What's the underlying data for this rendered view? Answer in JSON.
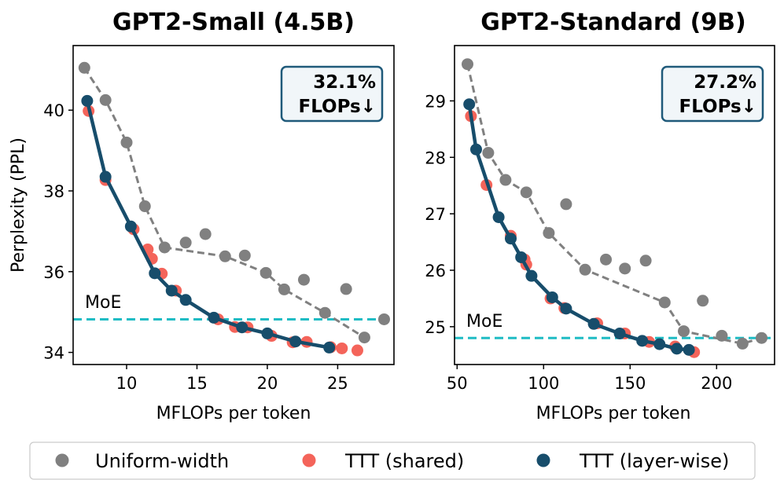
{
  "colors": {
    "uniform": "#808080",
    "shared": "#f4645a",
    "layerwise": "#174d6b",
    "moe": "#1fbcc4",
    "badge_border": "#1f5a7a",
    "badge_fill": "#f1f6f9"
  },
  "legend": {
    "items": [
      {
        "key": "uniform",
        "label": "Uniform-width"
      },
      {
        "key": "shared",
        "label": "TTT (shared)"
      },
      {
        "key": "layerwise",
        "label": "TTT (layer-wise)"
      }
    ]
  },
  "chart_data": [
    {
      "type": "line",
      "title": "GPT2-Small (4.5B)",
      "xlabel": "MFLOPs per token",
      "ylabel": "Perplexity (PPL)",
      "xlim": [
        6.2,
        29.0
      ],
      "ylim": [
        33.7,
        41.6
      ],
      "xticks": [
        10,
        15,
        20,
        25
      ],
      "yticks": [
        34,
        36,
        38,
        40
      ],
      "badge": {
        "line1": "32.1%",
        "line2": "FLOPs↓"
      },
      "moe": {
        "label": "MoE",
        "value": 34.82
      },
      "series": {
        "uniform": {
          "name": "Uniform-width",
          "points": [
            [
              7.0,
              41.05
            ],
            [
              8.5,
              40.25
            ],
            [
              10.0,
              39.2
            ],
            [
              11.3,
              37.62
            ],
            [
              12.7,
              36.6
            ],
            [
              14.2,
              36.72
            ],
            [
              15.6,
              36.93
            ],
            [
              17.0,
              36.38
            ],
            [
              18.4,
              36.4
            ],
            [
              19.9,
              35.97
            ],
            [
              21.2,
              35.56
            ],
            [
              22.6,
              35.8
            ],
            [
              24.1,
              34.98
            ],
            [
              25.6,
              35.57
            ],
            [
              26.9,
              34.37
            ],
            [
              28.3,
              34.82
            ]
          ],
          "line_indices": [
            0,
            1,
            2,
            3,
            4,
            7,
            9,
            10,
            12,
            14
          ]
        },
        "shared": {
          "name": "TTT (shared)",
          "points": [
            [
              7.3,
              39.98
            ],
            [
              8.5,
              38.27
            ],
            [
              10.5,
              37.05
            ],
            [
              11.5,
              36.55
            ],
            [
              11.8,
              36.32
            ],
            [
              12.5,
              35.95
            ],
            [
              13.5,
              35.53
            ],
            [
              16.5,
              34.82
            ],
            [
              17.7,
              34.63
            ],
            [
              18.6,
              34.62
            ],
            [
              20.3,
              34.41
            ],
            [
              21.8,
              34.25
            ],
            [
              22.8,
              34.26
            ],
            [
              24.5,
              34.13
            ],
            [
              25.3,
              34.1
            ],
            [
              26.4,
              34.05
            ]
          ]
        },
        "layerwise": {
          "name": "TTT (layer-wise)",
          "points": [
            [
              7.2,
              40.23
            ],
            [
              8.5,
              38.35
            ],
            [
              10.3,
              37.12
            ],
            [
              12.0,
              35.96
            ],
            [
              13.2,
              35.53
            ],
            [
              14.2,
              35.3
            ],
            [
              16.2,
              34.86
            ],
            [
              18.2,
              34.62
            ],
            [
              20.0,
              34.47
            ],
            [
              22.0,
              34.27
            ],
            [
              24.4,
              34.12
            ]
          ]
        }
      }
    },
    {
      "type": "line",
      "title": "GPT2-Standard (9B)",
      "xlabel": "MFLOPs per token",
      "ylabel": "",
      "xlim": [
        48.5,
        233.5
      ],
      "ylim": [
        24.33,
        29.98
      ],
      "xticks": [
        50,
        100,
        150,
        200
      ],
      "yticks": [
        25,
        26,
        27,
        28,
        29
      ],
      "badge": {
        "line1": "27.2%",
        "line2": "FLOPs↓"
      },
      "moe": {
        "label": "MoE",
        "value": 24.8
      },
      "series": {
        "uniform": {
          "name": "Uniform-width",
          "points": [
            [
              56,
              29.65
            ],
            [
              68,
              28.08
            ],
            [
              78,
              27.6
            ],
            [
              90,
              27.38
            ],
            [
              113,
              27.17
            ],
            [
              103,
              26.66
            ],
            [
              136,
              26.19
            ],
            [
              124,
              26.01
            ],
            [
              147,
              26.03
            ],
            [
              159,
              26.17
            ],
            [
              170,
              25.43
            ],
            [
              192,
              25.46
            ],
            [
              181,
              24.92
            ],
            [
              203,
              24.84
            ],
            [
              215,
              24.7
            ],
            [
              226,
              24.8
            ]
          ],
          "line_indices": [
            0,
            1,
            2,
            3,
            5,
            7,
            10,
            12,
            14,
            15
          ]
        },
        "shared": {
          "name": "TTT (shared)",
          "points": [
            [
              58,
              28.73
            ],
            [
              67,
              27.51
            ],
            [
              81,
              26.61
            ],
            [
              89,
              26.19
            ],
            [
              90,
              26.1
            ],
            [
              104,
              25.5
            ],
            [
              112,
              25.33
            ],
            [
              131,
              25.06
            ],
            [
              147,
              24.88
            ],
            [
              161,
              24.73
            ],
            [
              176,
              24.65
            ],
            [
              187,
              24.55
            ]
          ]
        },
        "layerwise": {
          "name": "TTT (layer-wise)",
          "points": [
            [
              57,
              28.94
            ],
            [
              61,
              28.14
            ],
            [
              74,
              26.94
            ],
            [
              81,
              26.56
            ],
            [
              87,
              26.23
            ],
            [
              93,
              25.9
            ],
            [
              105,
              25.52
            ],
            [
              113,
              25.32
            ],
            [
              129,
              25.05
            ],
            [
              144,
              24.88
            ],
            [
              157,
              24.75
            ],
            [
              167,
              24.69
            ],
            [
              177,
              24.61
            ],
            [
              184,
              24.59
            ]
          ]
        }
      }
    }
  ]
}
